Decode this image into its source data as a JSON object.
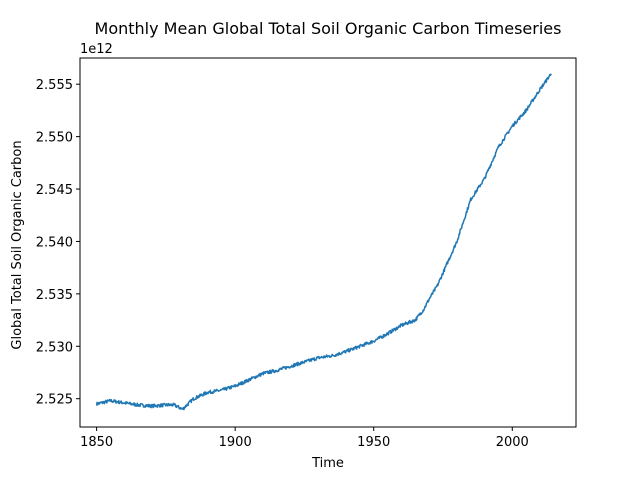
{
  "chart_data": {
    "type": "line",
    "title": "Monthly Mean Global Total Soil Organic Carbon Timeseries",
    "xlabel": "Time",
    "ylabel": "Global Total Soil Organic Carbon",
    "y_offset_label": "1e12",
    "y_multiplier": 1000000000000.0,
    "xlim": [
      1844,
      2023
    ],
    "ylim": [
      2.5223,
      2.5575
    ],
    "x_ticks": [
      1850,
      1900,
      1950,
      2000
    ],
    "y_ticks": [
      2.525,
      2.53,
      2.535,
      2.54,
      2.545,
      2.55,
      2.555
    ],
    "y_tick_labels": [
      "2.525",
      "2.530",
      "2.535",
      "2.540",
      "2.545",
      "2.550",
      "2.555"
    ],
    "grid": false,
    "series": [
      {
        "color": "#1f77b4",
        "x": [
          1850,
          1855,
          1860,
          1865,
          1870,
          1875,
          1878,
          1881,
          1885,
          1890,
          1895,
          1900,
          1905,
          1910,
          1915,
          1920,
          1925,
          1930,
          1935,
          1940,
          1945,
          1950,
          1955,
          1960,
          1965,
          1968,
          1970,
          1973,
          1975,
          1980,
          1985,
          1990,
          1995,
          2000,
          2005,
          2010,
          2014
        ],
        "y": [
          2.5245,
          2.5248,
          2.5246,
          2.5244,
          2.5243,
          2.5244,
          2.5244,
          2.524,
          2.525,
          2.5256,
          2.5258,
          2.5262,
          2.5268,
          2.5274,
          2.5277,
          2.5281,
          2.5285,
          2.5289,
          2.5291,
          2.5295,
          2.53,
          2.5305,
          2.5312,
          2.532,
          2.5325,
          2.5335,
          2.5345,
          2.5358,
          2.537,
          2.54,
          2.544,
          2.546,
          2.549,
          2.551,
          2.5525,
          2.5545,
          2.556
        ]
      }
    ]
  }
}
